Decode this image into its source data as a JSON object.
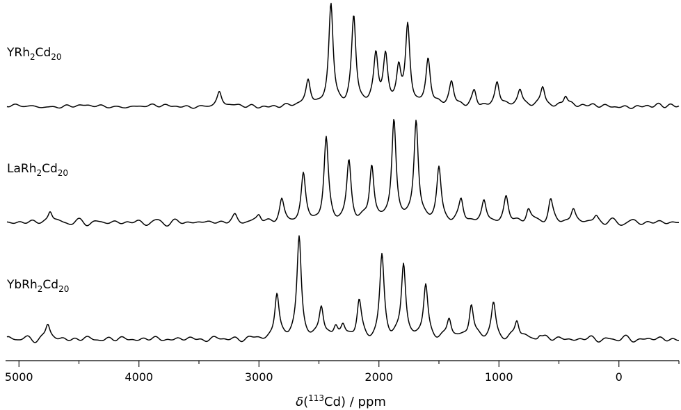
{
  "chart_data": {
    "type": "line",
    "x_axis": {
      "label_symbol": "δ",
      "label_open": "(",
      "label_isotope": "113",
      "label_element": "Cd",
      "label_close": ") / ppm",
      "reversed": true,
      "xlim": [
        5100,
        -500
      ],
      "ticks": [
        5000,
        4000,
        3000,
        2000,
        1000,
        0
      ],
      "tick_labels": [
        "5000",
        "4000",
        "3000",
        "2000",
        "1000",
        "0"
      ]
    },
    "y_axis": {
      "shown": false
    },
    "grid": false,
    "legend": "none",
    "series": [
      {
        "name_parts": [
          "YRh",
          "2",
          "Cd",
          "20"
        ],
        "peaks": [
          {
            "x": 3330,
            "y": 0.13
          },
          {
            "x": 2590,
            "y": 0.24
          },
          {
            "x": 2400,
            "y": 1.0
          },
          {
            "x": 2210,
            "y": 0.86
          },
          {
            "x": 2025,
            "y": 0.48
          },
          {
            "x": 1945,
            "y": 0.45
          },
          {
            "x": 1835,
            "y": 0.35
          },
          {
            "x": 1760,
            "y": 0.77
          },
          {
            "x": 1590,
            "y": 0.45
          },
          {
            "x": 1395,
            "y": 0.22
          },
          {
            "x": 1205,
            "y": 0.15
          },
          {
            "x": 1015,
            "y": 0.24
          },
          {
            "x": 825,
            "y": 0.15
          },
          {
            "x": 635,
            "y": 0.2
          },
          {
            "x": 445,
            "y": 0.12
          }
        ]
      },
      {
        "name_parts": [
          "LaRh",
          "2",
          "Cd",
          "20"
        ],
        "peaks": [
          {
            "x": 4740,
            "y": 0.11
          },
          {
            "x": 3200,
            "y": 0.06
          },
          {
            "x": 3000,
            "y": 0.07
          },
          {
            "x": 2810,
            "y": 0.2
          },
          {
            "x": 2630,
            "y": 0.45
          },
          {
            "x": 2440,
            "y": 0.8
          },
          {
            "x": 2250,
            "y": 0.58
          },
          {
            "x": 2060,
            "y": 0.56
          },
          {
            "x": 1875,
            "y": 1.0
          },
          {
            "x": 1690,
            "y": 1.0
          },
          {
            "x": 1500,
            "y": 0.52
          },
          {
            "x": 1315,
            "y": 0.21
          },
          {
            "x": 1125,
            "y": 0.2
          },
          {
            "x": 940,
            "y": 0.24
          },
          {
            "x": 755,
            "y": 0.13
          },
          {
            "x": 570,
            "y": 0.21
          },
          {
            "x": 380,
            "y": 0.13
          },
          {
            "x": 190,
            "y": 0.06
          }
        ]
      },
      {
        "name_parts": [
          "YbRh",
          "2",
          "Cd",
          "20"
        ],
        "peaks": [
          {
            "x": 4760,
            "y": 0.14
          },
          {
            "x": 2850,
            "y": 0.44
          },
          {
            "x": 2665,
            "y": 1.0
          },
          {
            "x": 2480,
            "y": 0.31
          },
          {
            "x": 2360,
            "y": 0.12
          },
          {
            "x": 2300,
            "y": 0.12
          },
          {
            "x": 2165,
            "y": 0.36
          },
          {
            "x": 1975,
            "y": 0.79
          },
          {
            "x": 1795,
            "y": 0.74
          },
          {
            "x": 1610,
            "y": 0.52
          },
          {
            "x": 1415,
            "y": 0.2
          },
          {
            "x": 1230,
            "y": 0.36
          },
          {
            "x": 1045,
            "y": 0.34
          },
          {
            "x": 850,
            "y": 0.19
          },
          {
            "x": 660,
            "y": 0.05
          }
        ]
      }
    ]
  }
}
